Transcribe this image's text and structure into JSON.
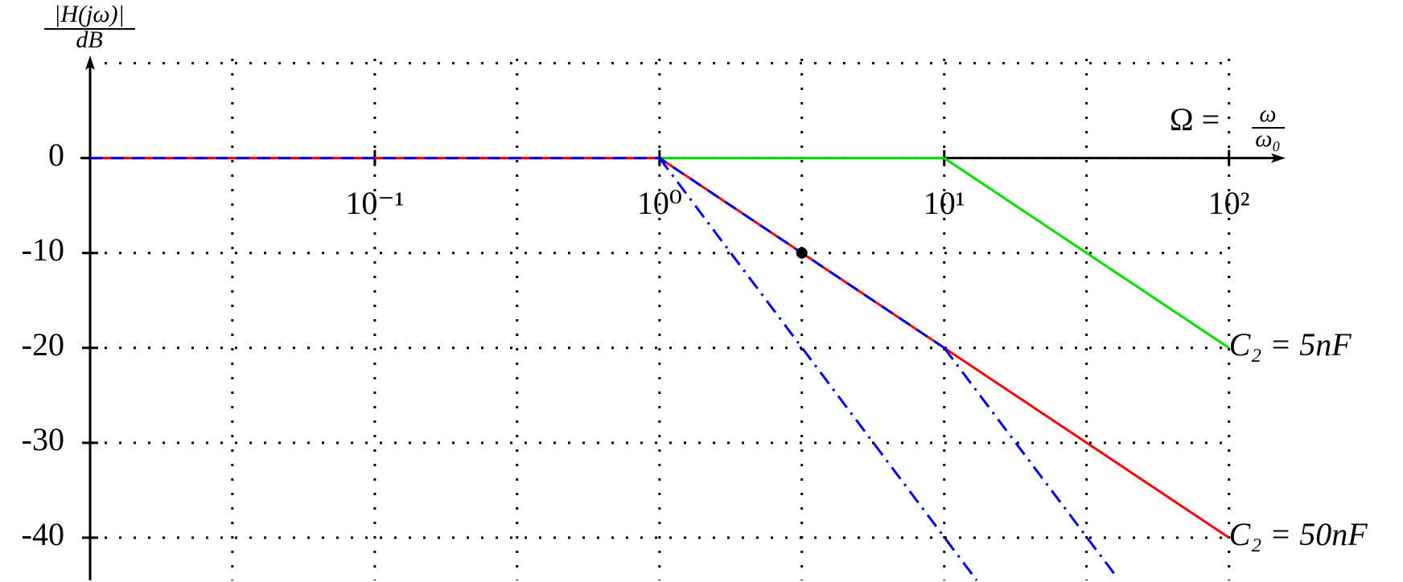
{
  "chart_data": {
    "type": "line",
    "x_scale": "log",
    "xlim": [
      0.01,
      150
    ],
    "ylim": [
      -44.5,
      12
    ],
    "xticks": [
      {
        "value": 0.1,
        "label": "10⁻¹"
      },
      {
        "value": 1,
        "label": "10⁰"
      },
      {
        "value": 10,
        "label": "10¹"
      },
      {
        "value": 100,
        "label": "10²"
      }
    ],
    "yticks": [
      0,
      -10,
      -20,
      -30,
      -40
    ],
    "grid_x": [
      0.01,
      0.0316,
      0.1,
      0.316,
      1,
      3.16,
      10,
      31.6,
      100
    ],
    "grid_y": [
      10,
      0,
      -10,
      -20,
      -30,
      -40
    ],
    "y_label": {
      "num": "|H(jω)|",
      "den": "dB"
    },
    "x_label": {
      "lhs": "Ω =",
      "num": "ω",
      "den": "ω₀"
    },
    "series": [
      {
        "name": "C₂ = 5nF",
        "color": "#00e000",
        "dash": "solid",
        "x": [
          1,
          10,
          100
        ],
        "values": [
          0,
          0,
          -20
        ]
      },
      {
        "name": "C₂ = 50nF",
        "color": "#ff0000",
        "dash": "solid",
        "x": [
          0.01,
          1,
          100
        ],
        "values": [
          0,
          0,
          -40
        ]
      },
      {
        "color": "#0000ff",
        "dash": "dashed",
        "x": [
          0.01,
          1,
          10
        ],
        "values": [
          0,
          0,
          -20
        ]
      },
      {
        "color": "#0000ff",
        "dash": "dashdot",
        "x": [
          1,
          13
        ],
        "values": [
          0,
          -44.5
        ]
      },
      {
        "color": "#0000ff",
        "dash": "dashdot",
        "x": [
          10,
          40
        ],
        "values": [
          -20,
          -44
        ]
      }
    ],
    "points": [
      {
        "x": 3.16,
        "value": -10,
        "color": "#000000"
      }
    ]
  }
}
